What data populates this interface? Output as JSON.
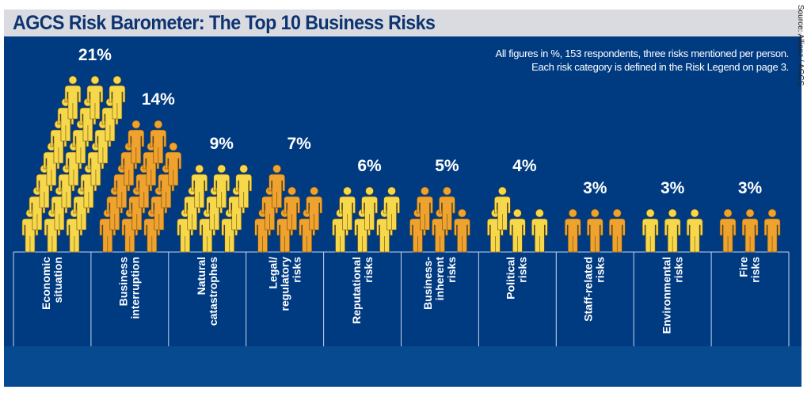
{
  "title": "AGCS Risk Barometer: The Top 10 Business Risks",
  "note_lines": [
    "All figures in %, 153 respondents, three risks mentioned per person.",
    "Each risk category is defined in the Risk Legend on page  3."
  ],
  "source": "Source: Allianz / AGCS",
  "colors": {
    "background": "#003b82",
    "yellow": "#f6d84a",
    "orange": "#efa22e",
    "title": "#0d3470"
  },
  "chart_data": {
    "type": "bar",
    "title": "AGCS Risk Barometer: The Top 10 Business Risks",
    "unit": "%",
    "encoding": "pictogram, one person icon per percentage point",
    "categories": [
      "Economic\nsituation",
      "Business\ninterruption",
      "Natural\ncatastrophes",
      "Legal/\nregulatory\nrisks",
      "Reputational\nrisks",
      "Business-\ninherent\nrisks",
      "Political\nrisks",
      "Staff-related\nrisks",
      "Environmental\nrisks",
      "Fire\nrisks"
    ],
    "values": [
      21,
      14,
      9,
      7,
      6,
      5,
      4,
      3,
      3,
      3
    ],
    "labels": [
      "21%",
      "14%",
      "9%",
      "7%",
      "6%",
      "5%",
      "4%",
      "3%",
      "3%",
      "3%"
    ],
    "series_colors": [
      "yellow",
      "orange",
      "yellow",
      "orange",
      "yellow",
      "orange",
      "yellow",
      "orange",
      "yellow",
      "orange"
    ]
  }
}
